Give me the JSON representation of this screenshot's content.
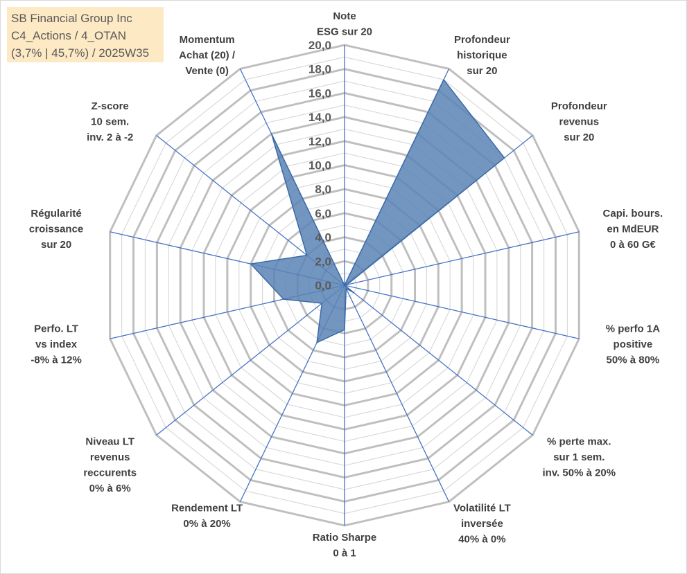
{
  "info": {
    "line1": "SB Financial Group Inc",
    "line2": "C4_Actions / 4_OTAN",
    "line3": "(3,7% | 45,7%) / 2025W35"
  },
  "colors": {
    "fill": "#5b84b5",
    "stroke": "#3a6aa8",
    "spoke": "#4472c4",
    "grid_major": "#bfbfbf",
    "grid_minor": "#d9d9d9",
    "info_bg": "#fde9c4"
  },
  "chart_data": {
    "type": "radar",
    "rmin": 0,
    "rmax": 20,
    "major_step": 2,
    "minor_step": 1,
    "tick_labels": [
      "0,0",
      "2,0",
      "4,0",
      "6,0",
      "8,0",
      "10,0",
      "12,0",
      "14,0",
      "16,0",
      "18,0",
      "20,0"
    ],
    "axes": [
      {
        "label": [
          "Note",
          "ESG sur 20"
        ],
        "value": 0
      },
      {
        "label": [
          "Profondeur",
          "historique",
          "sur 20"
        ],
        "value": 19
      },
      {
        "label": [
          "Profondeur",
          "revenus",
          "sur 20"
        ],
        "value": 17
      },
      {
        "label": [
          "Capi. bours.",
          "en MdEUR",
          "0 à 60 G€"
        ],
        "value": 0.2
      },
      {
        "label": [
          "% perfo 1A",
          "positive",
          "50% à 80%"
        ],
        "value": 0
      },
      {
        "label": [
          "% perte max.",
          "sur 1 sem.",
          "inv. 50% à 20%"
        ],
        "value": 1
      },
      {
        "label": [
          "Volatilité LT",
          "inversée",
          "40% à 0%"
        ],
        "value": 0.3
      },
      {
        "label": [
          "Ratio Sharpe",
          "0 à 1"
        ],
        "value": 3.7
      },
      {
        "label": [
          "Rendement LT",
          "0% à 20%"
        ],
        "value": 5.3
      },
      {
        "label": [
          "Niveau LT",
          "revenus",
          "reccurents",
          "0% à 6%"
        ],
        "value": 2.4
      },
      {
        "label": [
          "Perfo. LT",
          "vs index",
          "-8% à 12%"
        ],
        "value": 5.2
      },
      {
        "label": [
          "Régularité",
          "croissance",
          "sur 20"
        ],
        "value": 8
      },
      {
        "label": [
          "Z-score",
          "10 sem.",
          "inv. 2 à -2"
        ],
        "value": 4
      },
      {
        "label": [
          "Momentum",
          "Achat (20) /",
          "Vente (0)"
        ],
        "value": 14
      }
    ]
  }
}
